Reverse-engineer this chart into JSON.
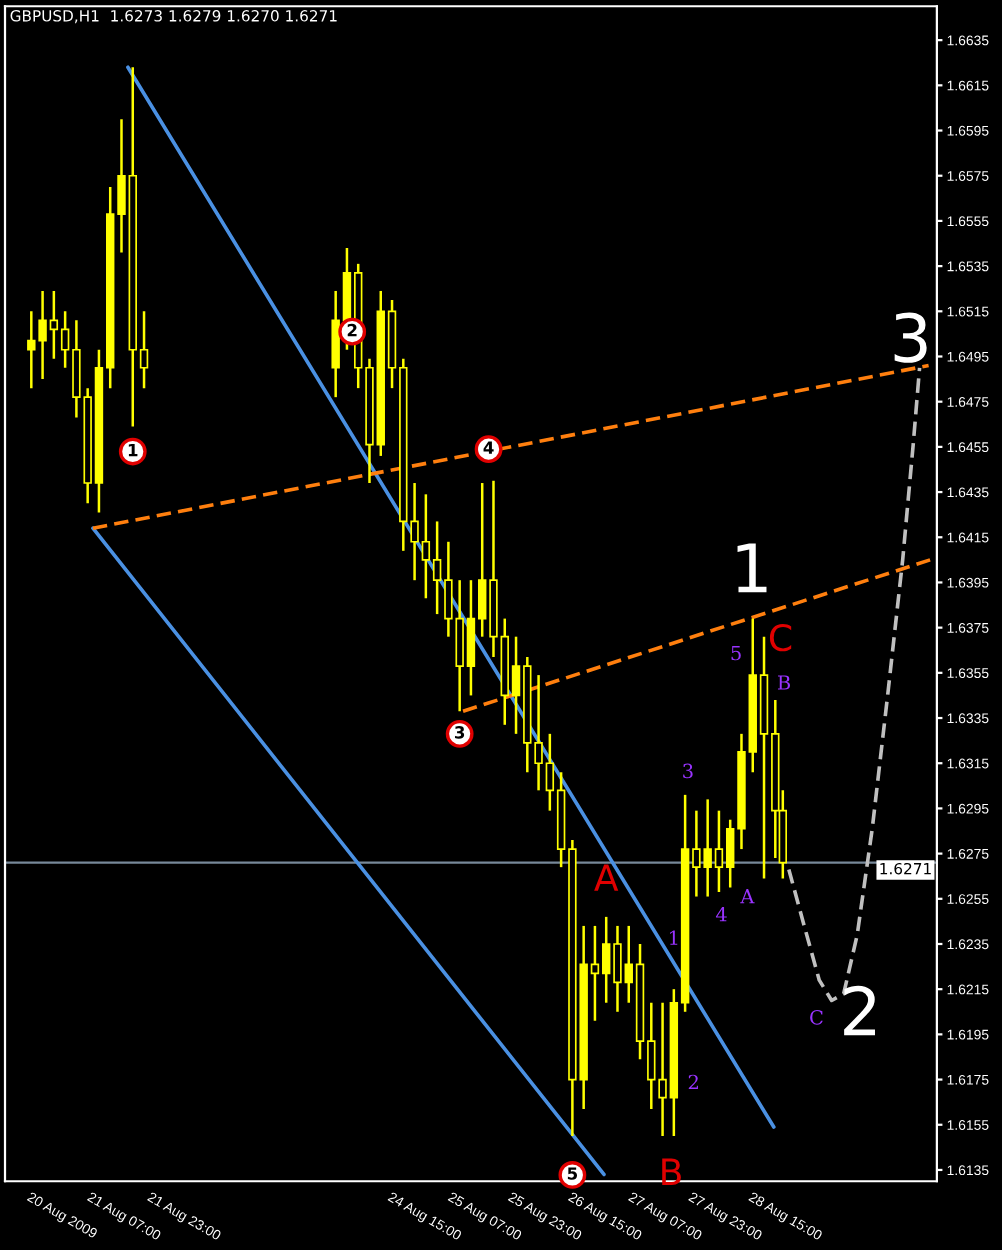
{
  "chart_data": {
    "type": "candlestick",
    "title": "GBPUSD,H1  1.6273 1.6279 1.6270 1.6271",
    "series": [
      {
        "color": "#ffff00",
        "x": [
          "2009-08-20T15:00",
          "2009-08-20T18:00",
          "2009-08-20T21:00",
          "2009-08-21T00:00",
          "2009-08-21T03:00",
          "2009-08-21T06:00",
          "2009-08-21T09:00",
          "2009-08-21T12:00",
          "2009-08-21T15:00",
          "2009-08-21T18:00",
          "2009-08-21T21:00",
          "2009-08-24T00:00",
          "2009-08-24T03:00",
          "2009-08-24T06:00",
          "2009-08-24T09:00",
          "2009-08-24T12:00",
          "2009-08-24T15:00",
          "2009-08-24T18:00",
          "2009-08-24T21:00",
          "2009-08-25T00:00",
          "2009-08-25T03:00",
          "2009-08-25T06:00",
          "2009-08-25T09:00",
          "2009-08-25T12:00",
          "2009-08-25T15:00",
          "2009-08-25T18:00",
          "2009-08-25T21:00",
          "2009-08-26T00:00",
          "2009-08-26T03:00",
          "2009-08-26T06:00",
          "2009-08-26T09:00",
          "2009-08-26T12:00",
          "2009-08-26T15:00",
          "2009-08-26T18:00",
          "2009-08-26T21:00",
          "2009-08-27T00:00",
          "2009-08-27T03:00",
          "2009-08-27T06:00",
          "2009-08-27T09:00",
          "2009-08-27T12:00",
          "2009-08-27T15:00",
          "2009-08-27T18:00",
          "2009-08-27T21:00",
          "2009-08-28T00:00",
          "2009-08-28T03:00",
          "2009-08-28T06:00",
          "2009-08-28T09:00",
          "2009-08-28T12:00",
          "2009-08-28T15:00",
          "2009-08-28T18:00",
          "2009-08-28T21:00",
          "2009-08-28T23:00"
        ],
        "ohlc": [
          [
            1.6498,
            1.6515,
            1.6481,
            1.6502
          ],
          [
            1.6502,
            1.6524,
            1.6485,
            1.6511
          ],
          [
            1.6511,
            1.6524,
            1.6494,
            1.6507
          ],
          [
            1.6507,
            1.6515,
            1.649,
            1.6498
          ],
          [
            1.6498,
            1.6511,
            1.6468,
            1.6477
          ],
          [
            1.6477,
            1.6481,
            1.643,
            1.6439
          ],
          [
            1.6439,
            1.6498,
            1.6426,
            1.649
          ],
          [
            1.649,
            1.657,
            1.6481,
            1.6558
          ],
          [
            1.6558,
            1.66,
            1.6541,
            1.6575
          ],
          [
            1.6575,
            1.6623,
            1.6464,
            1.6498
          ],
          [
            1.6498,
            1.6515,
            1.6481,
            1.649
          ],
          [
            1.649,
            1.6524,
            1.6477,
            1.6511
          ],
          [
            1.6511,
            1.6543,
            1.6498,
            1.6532
          ],
          [
            1.6532,
            1.6536,
            1.6481,
            1.649
          ],
          [
            1.649,
            1.6494,
            1.6439,
            1.6456
          ],
          [
            1.6456,
            1.6524,
            1.6451,
            1.6515
          ],
          [
            1.6515,
            1.652,
            1.6481,
            1.649
          ],
          [
            1.649,
            1.6494,
            1.6409,
            1.6422
          ],
          [
            1.6422,
            1.6439,
            1.6396,
            1.6413
          ],
          [
            1.6413,
            1.6434,
            1.6388,
            1.6405
          ],
          [
            1.6405,
            1.6422,
            1.6381,
            1.6396
          ],
          [
            1.6396,
            1.6413,
            1.6371,
            1.6379
          ],
          [
            1.6379,
            1.6396,
            1.6338,
            1.6358
          ],
          [
            1.6358,
            1.6396,
            1.6345,
            1.6379
          ],
          [
            1.6379,
            1.6439,
            1.6371,
            1.6396
          ],
          [
            1.6396,
            1.644,
            1.6362,
            1.6371
          ],
          [
            1.6371,
            1.6379,
            1.6332,
            1.6345
          ],
          [
            1.6345,
            1.6371,
            1.6328,
            1.6358
          ],
          [
            1.6358,
            1.6362,
            1.6311,
            1.6324
          ],
          [
            1.6324,
            1.6354,
            1.6303,
            1.6315
          ],
          [
            1.6315,
            1.6328,
            1.6294,
            1.6303
          ],
          [
            1.6303,
            1.6311,
            1.6269,
            1.6277
          ],
          [
            1.6277,
            1.6281,
            1.615,
            1.6175
          ],
          [
            1.6175,
            1.6243,
            1.6162,
            1.6226
          ],
          [
            1.6226,
            1.6243,
            1.6201,
            1.6222
          ],
          [
            1.6222,
            1.6247,
            1.6209,
            1.6235
          ],
          [
            1.6235,
            1.6243,
            1.6205,
            1.6218
          ],
          [
            1.6218,
            1.6243,
            1.6209,
            1.6226
          ],
          [
            1.6226,
            1.6235,
            1.6184,
            1.6192
          ],
          [
            1.6192,
            1.6209,
            1.6162,
            1.6175
          ],
          [
            1.6175,
            1.6209,
            1.615,
            1.6167
          ],
          [
            1.6167,
            1.6215,
            1.615,
            1.6209
          ],
          [
            1.6209,
            1.6301,
            1.6205,
            1.6277
          ],
          [
            1.6277,
            1.6294,
            1.6256,
            1.6269
          ],
          [
            1.6269,
            1.6299,
            1.6256,
            1.6277
          ],
          [
            1.6277,
            1.6294,
            1.6258,
            1.6269
          ],
          [
            1.6269,
            1.629,
            1.626,
            1.6286
          ],
          [
            1.6286,
            1.6328,
            1.6277,
            1.632
          ],
          [
            1.632,
            1.6379,
            1.6311,
            1.6354
          ],
          [
            1.6354,
            1.6371,
            1.6264,
            1.6328
          ],
          [
            1.6328,
            1.6343,
            1.6273,
            1.6294
          ],
          [
            1.6294,
            1.6303,
            1.6264,
            1.6271
          ]
        ]
      },
      {
        "type": "line",
        "color": "#4a90e2",
        "line_style": "solid",
        "x": [
          "2009-08-21T16:42",
          "2009-08-28T20:36"
        ],
        "values": [
          1.6623,
          1.6154
        ]
      },
      {
        "type": "line",
        "color": "#4a90e2",
        "line_style": "solid",
        "x": [
          "2009-08-21T07:24",
          "2009-08-26T23:24"
        ],
        "values": [
          1.6419,
          1.6133
        ]
      },
      {
        "type": "line",
        "color": "#ff7f0e",
        "line_style": "dashed",
        "x": [
          "2009-08-21T07:24",
          "2009-08-30T13:48"
        ],
        "values": [
          1.6419,
          1.6491
        ]
      },
      {
        "type": "line",
        "color": "#ff7f0e",
        "line_style": "dashed",
        "x": [
          "2009-08-25T09:54",
          "2009-08-30T14:12"
        ],
        "values": [
          1.6338,
          1.6405
        ]
      },
      {
        "type": "line",
        "color": "#c0c0c0",
        "line_style": "dashed",
        "x": [
          "2009-08-29T00:36",
          "2009-08-29T04:42",
          "2009-08-29T08:42",
          "2009-08-29T12:00",
          "2009-08-29T15:12",
          "2009-08-29T18:48",
          "2009-08-29T22:48",
          "2009-08-30T02:54",
          "2009-08-30T06:54",
          "2009-08-30T09:42",
          "2009-08-30T11:24"
        ],
        "values": [
          1.6268,
          1.6243,
          1.6219,
          1.621,
          1.6213,
          1.6239,
          1.6286,
          1.6345,
          1.6405,
          1.6456,
          1.649
        ]
      }
    ],
    "xlim": [
      "2009-08-20T08:00",
      "2009-08-30T16:00"
    ],
    "ylim": [
      1.613,
      1.665
    ],
    "xticks": [
      {
        "value": "2009-08-20T15:00",
        "label": "20 Aug 2009"
      },
      {
        "value": "2009-08-21T07:00",
        "label": "21 Aug 07:00"
      },
      {
        "value": "2009-08-21T23:00",
        "label": "21 Aug 23:00"
      },
      {
        "value": "2009-08-24T15:00",
        "label": "24 Aug 15:00"
      },
      {
        "value": "2009-08-25T07:00",
        "label": "25 Aug 07:00"
      },
      {
        "value": "2009-08-25T23:00",
        "label": "25 Aug 23:00"
      },
      {
        "value": "2009-08-26T15:00",
        "label": "26 Aug 15:00"
      },
      {
        "value": "2009-08-27T07:00",
        "label": "27 Aug 07:00"
      },
      {
        "value": "2009-08-27T23:00",
        "label": "27 Aug 23:00"
      },
      {
        "value": "2009-08-28T15:00",
        "label": "28 Aug 15:00"
      }
    ],
    "yticks": [
      1.6135,
      1.6155,
      1.6175,
      1.6195,
      1.6215,
      1.6235,
      1.6255,
      1.6275,
      1.6295,
      1.6315,
      1.6335,
      1.6355,
      1.6375,
      1.6395,
      1.6415,
      1.6435,
      1.6455,
      1.6475,
      1.6495,
      1.6515,
      1.6535,
      1.6555,
      1.6575,
      1.6595,
      1.6615,
      1.6635
    ],
    "ref_lines": [
      {
        "axis": "y",
        "value": 1.6271,
        "label": "1.6271",
        "color": "#778899"
      }
    ],
    "grid": false,
    "annotations": [
      {
        "text": "1",
        "x": "2009-08-21T18:00",
        "y": 1.6464
      },
      {
        "text": "2",
        "x": "2009-08-24T04:24",
        "y": 1.6506
      },
      {
        "text": "3",
        "x": "2009-08-25T09:00",
        "y": 1.6328
      },
      {
        "text": "4",
        "x": "2009-08-25T16:42",
        "y": 1.6454
      },
      {
        "text": "5",
        "x": "2009-08-26T15:00",
        "y": 1.615
      },
      {
        "text": "A",
        "x": "2009-08-27T00:00",
        "y": 1.6247
      },
      {
        "text": "B",
        "x": "2009-08-27T18:00",
        "y": 1.615
      },
      {
        "text": "C",
        "x": "2009-08-28T15:00",
        "y": 1.6379
      },
      {
        "text": "1",
        "x": "2009-08-27T18:00",
        "y": 1.6237
      },
      "2",
      {
        "text": "3",
        "x": "2009-08-27T21:00",
        "y": 1.6301
      },
      {
        "text": "4",
        "x": "2009-08-28T03:00",
        "y": 1.6256
      },
      {
        "text": "5",
        "x": "2009-08-28T15:00",
        "y": 1.6379
      },
      {
        "text": "A",
        "x": "2009-08-28T18:00",
        "y": 1.6264
      },
      "B",
      {
        "text": "C",
        "x": "2009-08-29T08:42",
        "y": 1.6219
      },
      "1",
      "2",
      "3"
    ]
  }
}
